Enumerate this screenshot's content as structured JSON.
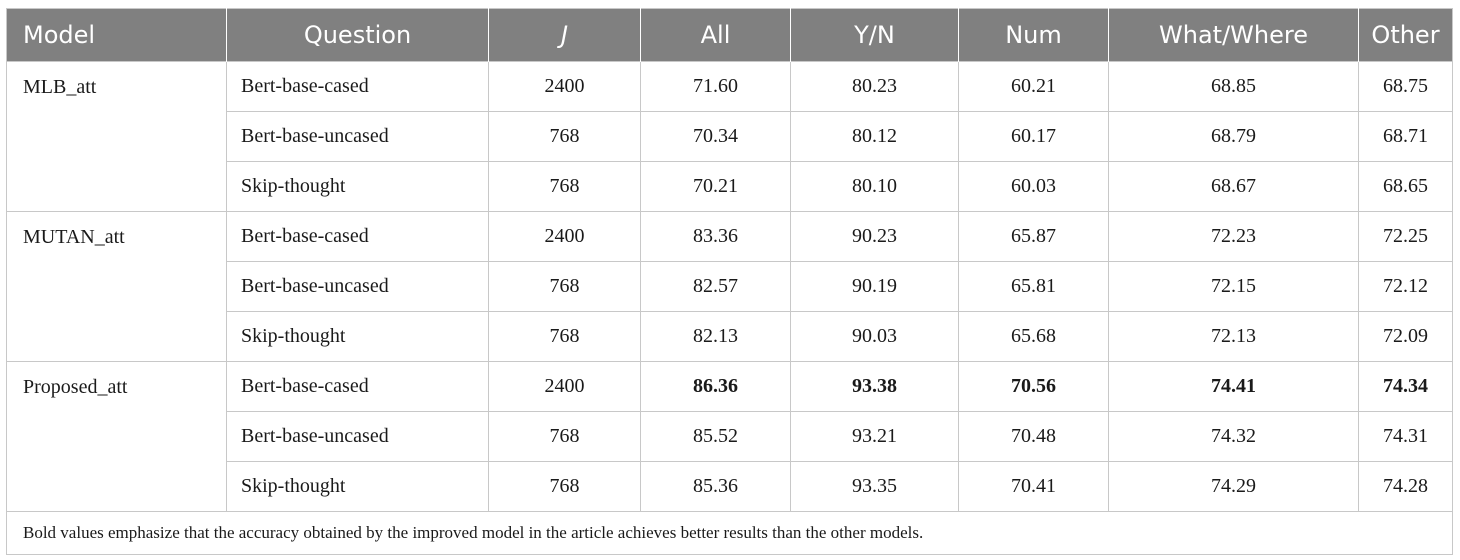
{
  "table": {
    "headers": [
      "Model",
      "Question",
      "J",
      "All",
      "Y/N",
      "Num",
      "What/Where",
      "Other"
    ],
    "groups": [
      {
        "model": "MLB_att",
        "rows": [
          {
            "question": "Bert-base-cased",
            "j": "2400",
            "all": "71.60",
            "yn": "80.23",
            "num": "60.21",
            "ww": "68.85",
            "other": "68.75"
          },
          {
            "question": "Bert-base-uncased",
            "j": "768",
            "all": "70.34",
            "yn": "80.12",
            "num": "60.17",
            "ww": "68.79",
            "other": "68.71"
          },
          {
            "question": "Skip-thought",
            "j": "768",
            "all": "70.21",
            "yn": "80.10",
            "num": "60.03",
            "ww": "68.67",
            "other": "68.65"
          }
        ]
      },
      {
        "model": "MUTAN_att",
        "rows": [
          {
            "question": "Bert-base-cased",
            "j": "2400",
            "all": "83.36",
            "yn": "90.23",
            "num": "65.87",
            "ww": "72.23",
            "other": "72.25"
          },
          {
            "question": "Bert-base-uncased",
            "j": "768",
            "all": "82.57",
            "yn": "90.19",
            "num": "65.81",
            "ww": "72.15",
            "other": "72.12"
          },
          {
            "question": "Skip-thought",
            "j": "768",
            "all": "82.13",
            "yn": "90.03",
            "num": "65.68",
            "ww": "72.13",
            "other": "72.09"
          }
        ]
      },
      {
        "model": "Proposed_att",
        "rows": [
          {
            "question": "Bert-base-cased",
            "j": "2400",
            "all": "86.36",
            "yn": "93.38",
            "num": "70.56",
            "ww": "74.41",
            "other": "74.34"
          },
          {
            "question": "Bert-base-uncased",
            "j": "768",
            "all": "85.52",
            "yn": "93.21",
            "num": "70.48",
            "ww": "74.32",
            "other": "74.31"
          },
          {
            "question": "Skip-thought",
            "j": "768",
            "all": "85.36",
            "yn": "93.35",
            "num": "70.41",
            "ww": "74.29",
            "other": "74.28"
          }
        ]
      }
    ],
    "footnote": "Bold values emphasize that the accuracy obtained by the improved model in the article achieves better results than the other models.",
    "header_color": "#808080"
  }
}
